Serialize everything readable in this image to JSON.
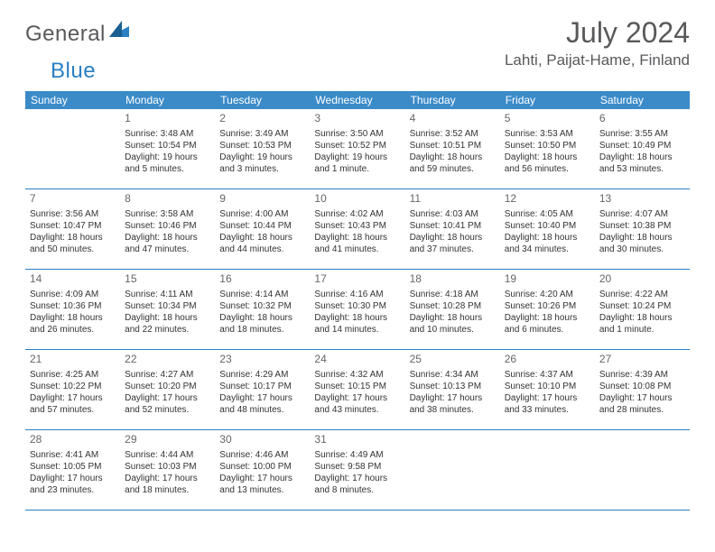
{
  "brand": {
    "part1": "General",
    "part2": "Blue"
  },
  "title": "July 2024",
  "location": "Lahti, Paijat-Hame, Finland",
  "colors": {
    "header_bg": "#3b8bc9",
    "border": "#2b7fc3",
    "logo_gray": "#58595b",
    "logo_blue": "#2b7fc3"
  },
  "weekdays": [
    "Sunday",
    "Monday",
    "Tuesday",
    "Wednesday",
    "Thursday",
    "Friday",
    "Saturday"
  ],
  "weeks": [
    [
      {
        "num": "",
        "lines": []
      },
      {
        "num": "1",
        "lines": [
          "Sunrise: 3:48 AM",
          "Sunset: 10:54 PM",
          "Daylight: 19 hours",
          "and 5 minutes."
        ]
      },
      {
        "num": "2",
        "lines": [
          "Sunrise: 3:49 AM",
          "Sunset: 10:53 PM",
          "Daylight: 19 hours",
          "and 3 minutes."
        ]
      },
      {
        "num": "3",
        "lines": [
          "Sunrise: 3:50 AM",
          "Sunset: 10:52 PM",
          "Daylight: 19 hours",
          "and 1 minute."
        ]
      },
      {
        "num": "4",
        "lines": [
          "Sunrise: 3:52 AM",
          "Sunset: 10:51 PM",
          "Daylight: 18 hours",
          "and 59 minutes."
        ]
      },
      {
        "num": "5",
        "lines": [
          "Sunrise: 3:53 AM",
          "Sunset: 10:50 PM",
          "Daylight: 18 hours",
          "and 56 minutes."
        ]
      },
      {
        "num": "6",
        "lines": [
          "Sunrise: 3:55 AM",
          "Sunset: 10:49 PM",
          "Daylight: 18 hours",
          "and 53 minutes."
        ]
      }
    ],
    [
      {
        "num": "7",
        "lines": [
          "Sunrise: 3:56 AM",
          "Sunset: 10:47 PM",
          "Daylight: 18 hours",
          "and 50 minutes."
        ]
      },
      {
        "num": "8",
        "lines": [
          "Sunrise: 3:58 AM",
          "Sunset: 10:46 PM",
          "Daylight: 18 hours",
          "and 47 minutes."
        ]
      },
      {
        "num": "9",
        "lines": [
          "Sunrise: 4:00 AM",
          "Sunset: 10:44 PM",
          "Daylight: 18 hours",
          "and 44 minutes."
        ]
      },
      {
        "num": "10",
        "lines": [
          "Sunrise: 4:02 AM",
          "Sunset: 10:43 PM",
          "Daylight: 18 hours",
          "and 41 minutes."
        ]
      },
      {
        "num": "11",
        "lines": [
          "Sunrise: 4:03 AM",
          "Sunset: 10:41 PM",
          "Daylight: 18 hours",
          "and 37 minutes."
        ]
      },
      {
        "num": "12",
        "lines": [
          "Sunrise: 4:05 AM",
          "Sunset: 10:40 PM",
          "Daylight: 18 hours",
          "and 34 minutes."
        ]
      },
      {
        "num": "13",
        "lines": [
          "Sunrise: 4:07 AM",
          "Sunset: 10:38 PM",
          "Daylight: 18 hours",
          "and 30 minutes."
        ]
      }
    ],
    [
      {
        "num": "14",
        "lines": [
          "Sunrise: 4:09 AM",
          "Sunset: 10:36 PM",
          "Daylight: 18 hours",
          "and 26 minutes."
        ]
      },
      {
        "num": "15",
        "lines": [
          "Sunrise: 4:11 AM",
          "Sunset: 10:34 PM",
          "Daylight: 18 hours",
          "and 22 minutes."
        ]
      },
      {
        "num": "16",
        "lines": [
          "Sunrise: 4:14 AM",
          "Sunset: 10:32 PM",
          "Daylight: 18 hours",
          "and 18 minutes."
        ]
      },
      {
        "num": "17",
        "lines": [
          "Sunrise: 4:16 AM",
          "Sunset: 10:30 PM",
          "Daylight: 18 hours",
          "and 14 minutes."
        ]
      },
      {
        "num": "18",
        "lines": [
          "Sunrise: 4:18 AM",
          "Sunset: 10:28 PM",
          "Daylight: 18 hours",
          "and 10 minutes."
        ]
      },
      {
        "num": "19",
        "lines": [
          "Sunrise: 4:20 AM",
          "Sunset: 10:26 PM",
          "Daylight: 18 hours",
          "and 6 minutes."
        ]
      },
      {
        "num": "20",
        "lines": [
          "Sunrise: 4:22 AM",
          "Sunset: 10:24 PM",
          "Daylight: 18 hours",
          "and 1 minute."
        ]
      }
    ],
    [
      {
        "num": "21",
        "lines": [
          "Sunrise: 4:25 AM",
          "Sunset: 10:22 PM",
          "Daylight: 17 hours",
          "and 57 minutes."
        ]
      },
      {
        "num": "22",
        "lines": [
          "Sunrise: 4:27 AM",
          "Sunset: 10:20 PM",
          "Daylight: 17 hours",
          "and 52 minutes."
        ]
      },
      {
        "num": "23",
        "lines": [
          "Sunrise: 4:29 AM",
          "Sunset: 10:17 PM",
          "Daylight: 17 hours",
          "and 48 minutes."
        ]
      },
      {
        "num": "24",
        "lines": [
          "Sunrise: 4:32 AM",
          "Sunset: 10:15 PM",
          "Daylight: 17 hours",
          "and 43 minutes."
        ]
      },
      {
        "num": "25",
        "lines": [
          "Sunrise: 4:34 AM",
          "Sunset: 10:13 PM",
          "Daylight: 17 hours",
          "and 38 minutes."
        ]
      },
      {
        "num": "26",
        "lines": [
          "Sunrise: 4:37 AM",
          "Sunset: 10:10 PM",
          "Daylight: 17 hours",
          "and 33 minutes."
        ]
      },
      {
        "num": "27",
        "lines": [
          "Sunrise: 4:39 AM",
          "Sunset: 10:08 PM",
          "Daylight: 17 hours",
          "and 28 minutes."
        ]
      }
    ],
    [
      {
        "num": "28",
        "lines": [
          "Sunrise: 4:41 AM",
          "Sunset: 10:05 PM",
          "Daylight: 17 hours",
          "and 23 minutes."
        ]
      },
      {
        "num": "29",
        "lines": [
          "Sunrise: 4:44 AM",
          "Sunset: 10:03 PM",
          "Daylight: 17 hours",
          "and 18 minutes."
        ]
      },
      {
        "num": "30",
        "lines": [
          "Sunrise: 4:46 AM",
          "Sunset: 10:00 PM",
          "Daylight: 17 hours",
          "and 13 minutes."
        ]
      },
      {
        "num": "31",
        "lines": [
          "Sunrise: 4:49 AM",
          "Sunset: 9:58 PM",
          "Daylight: 17 hours",
          "and 8 minutes."
        ]
      },
      {
        "num": "",
        "lines": []
      },
      {
        "num": "",
        "lines": []
      },
      {
        "num": "",
        "lines": []
      }
    ]
  ]
}
